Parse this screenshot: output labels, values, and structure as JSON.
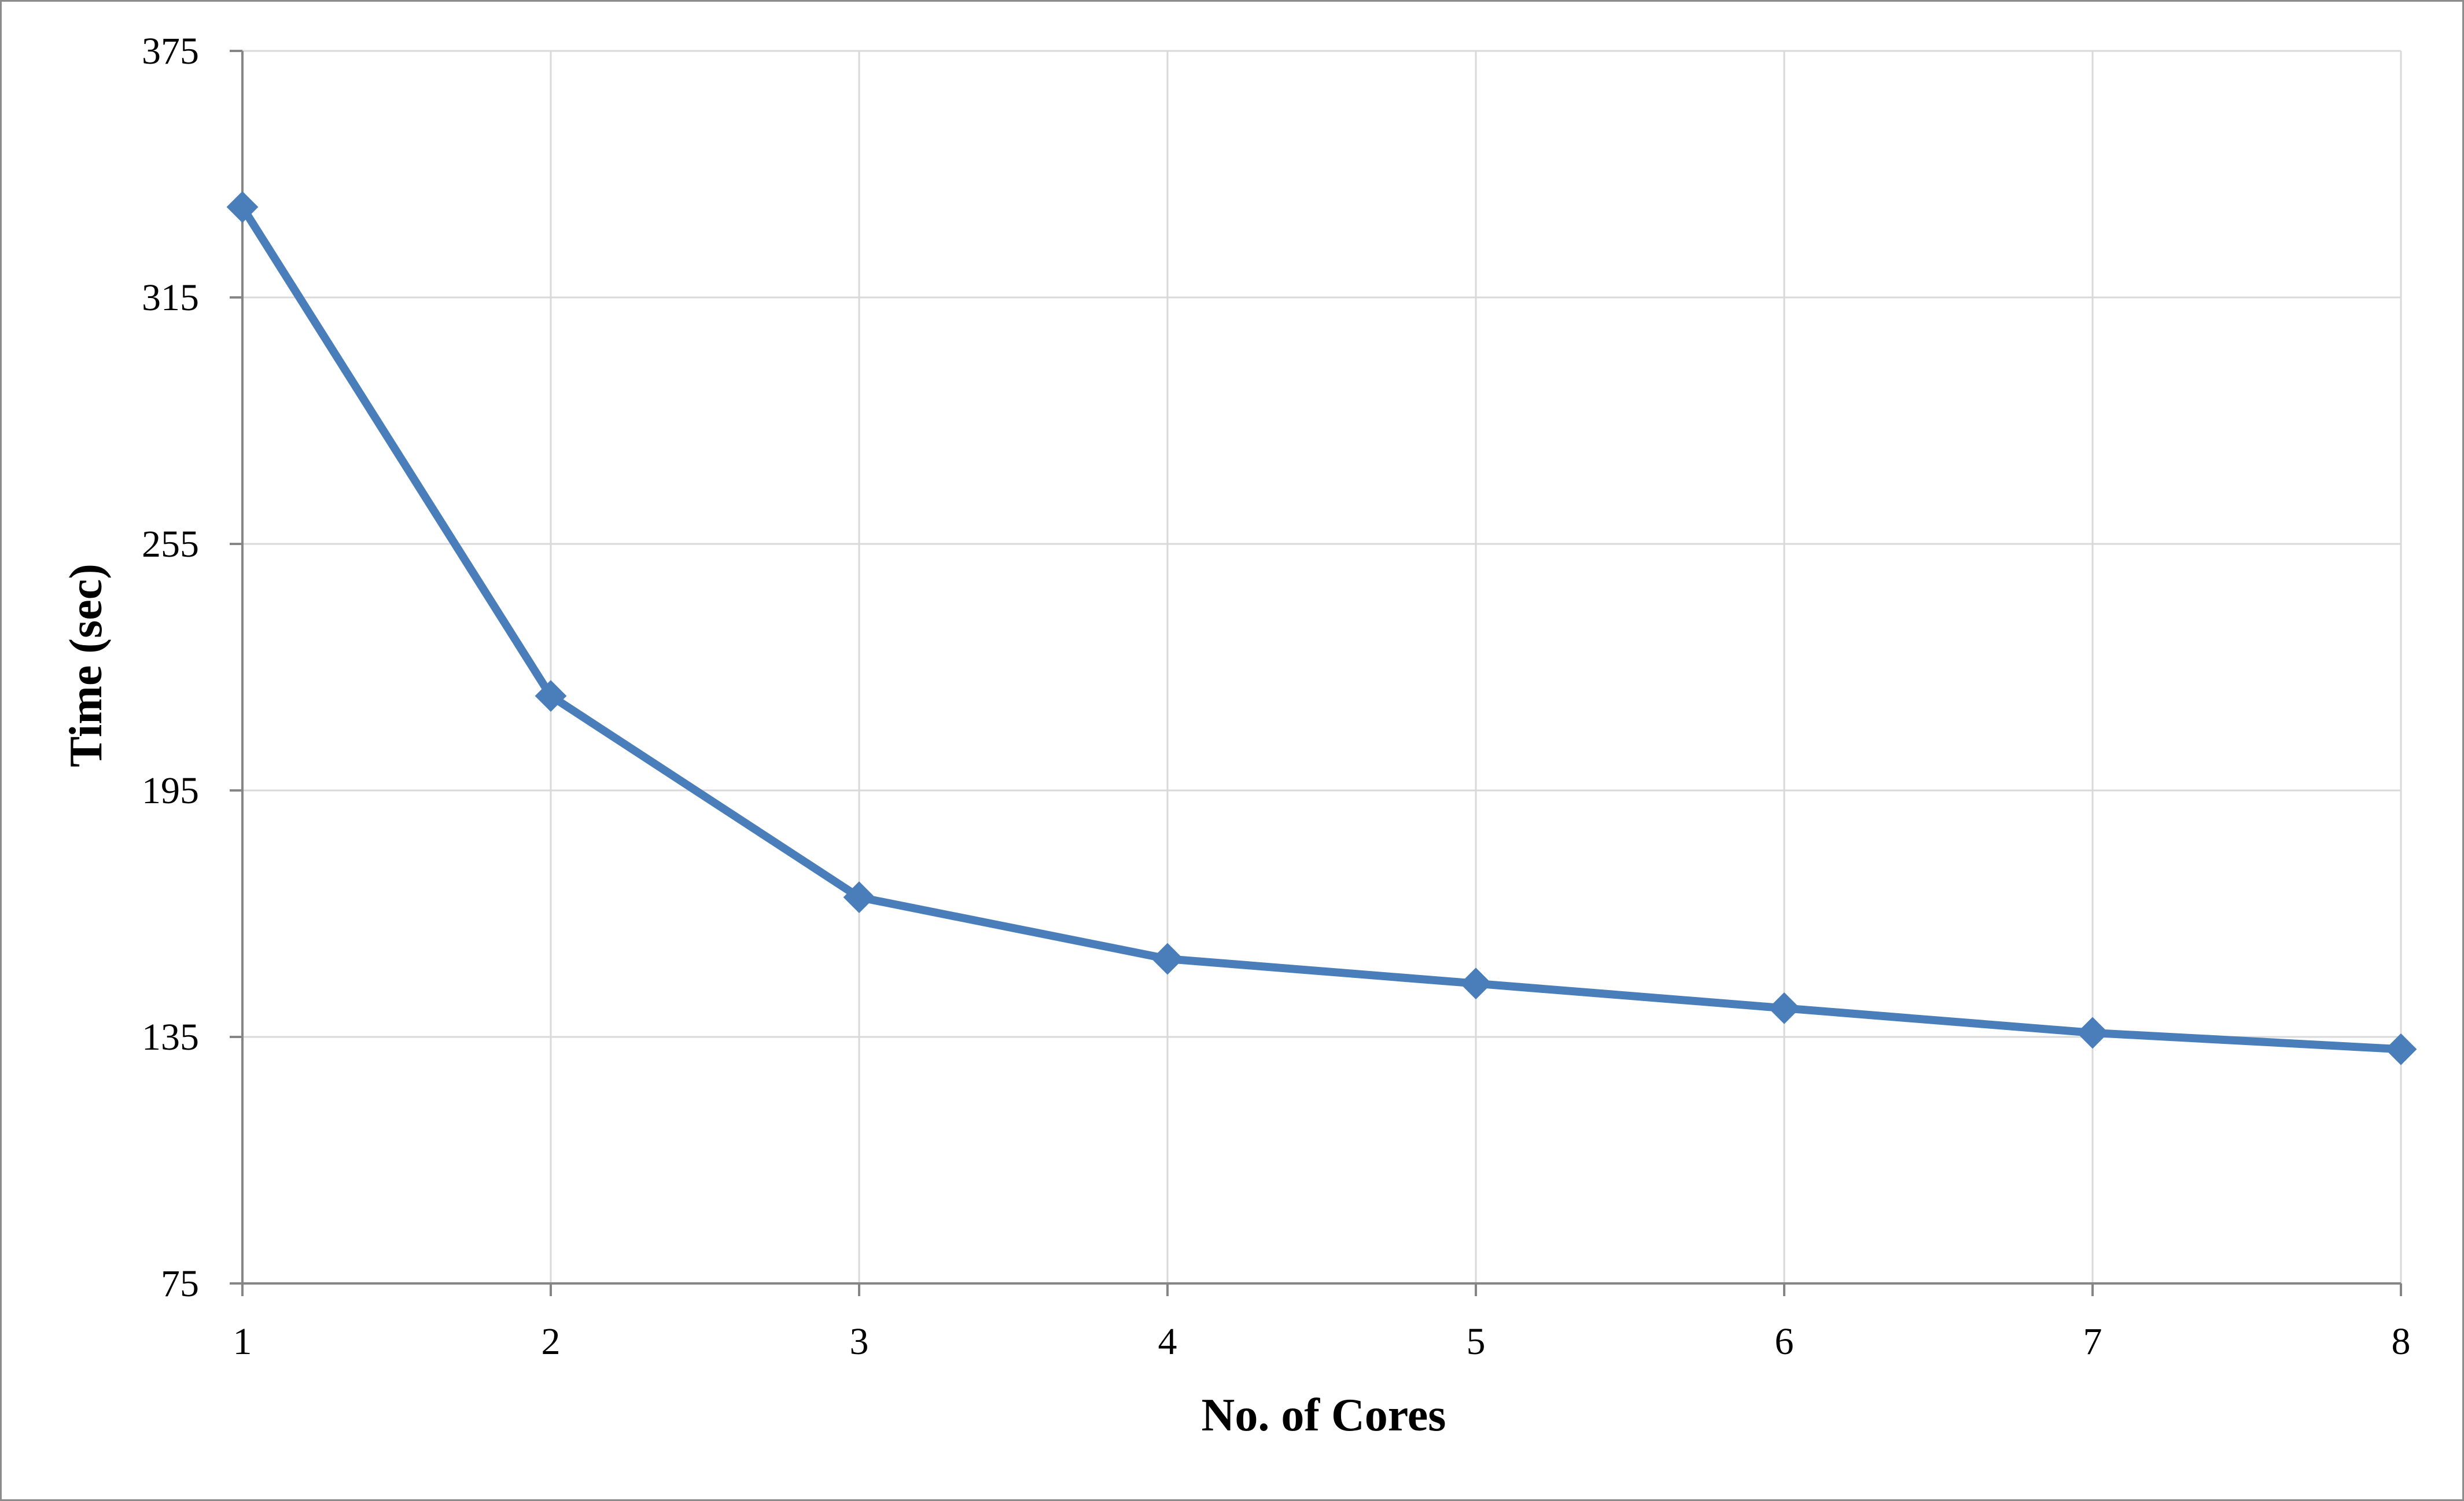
{
  "chart_data": {
    "type": "line",
    "title": "",
    "xlabel": "No. of Cores",
    "ylabel": "Time (sec)",
    "x": [
      1,
      2,
      3,
      4,
      5,
      6,
      7,
      8
    ],
    "xticks": [
      "1",
      "2",
      "3",
      "4",
      "5",
      "6",
      "7",
      "8"
    ],
    "yticks": [
      "75",
      "135",
      "195",
      "255",
      "315",
      "375"
    ],
    "ylim": [
      75,
      375
    ],
    "xlim": [
      1,
      8
    ],
    "grid": true,
    "legend": "none",
    "series": [
      {
        "values": [
          337,
          218,
          169,
          154,
          148,
          142,
          136,
          132
        ],
        "color": "#4a7ebb",
        "marker": "diamond"
      }
    ]
  }
}
